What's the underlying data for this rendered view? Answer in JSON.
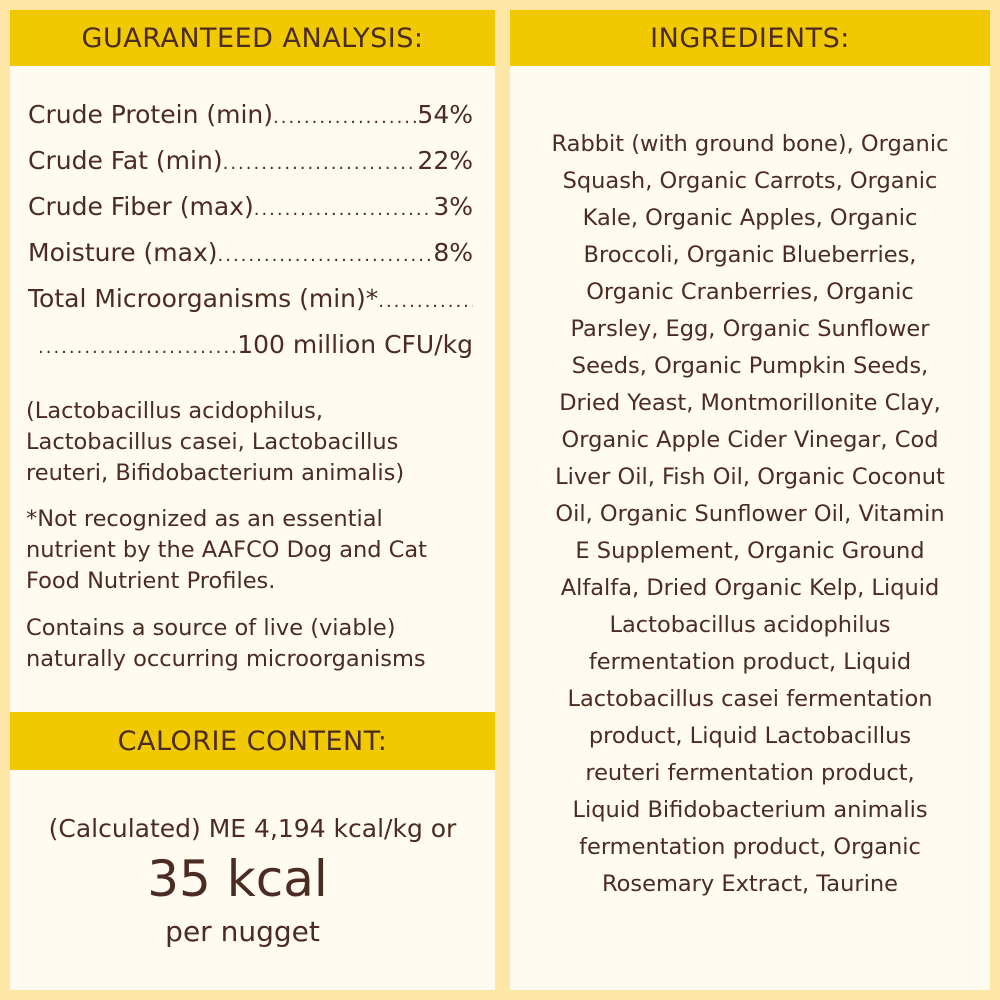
{
  "colors": {
    "background": "#fde7a6",
    "header": "#f0c900",
    "panel": "#fffbf1",
    "text": "#4b2b22"
  },
  "analysis": {
    "title": "GUARANTEED ANALYSIS:",
    "items": [
      {
        "label": "Crude Protein (min)",
        "value": "54%"
      },
      {
        "label": "Crude Fat (min)",
        "value": "22%"
      },
      {
        "label": "Crude Fiber (max)",
        "value": "3%"
      },
      {
        "label": "Moisture (max)",
        "value": "8%"
      },
      {
        "label": "Total Microorganisms (min)*",
        "value": ""
      },
      {
        "label": "",
        "value": "100 million CFU/kg"
      }
    ],
    "strains": [
      "(Lactobacillus acidophilus,",
      "Lactobacillus casei, Lactobacillus",
      "reuteri, Bifidobacterium animalis)"
    ],
    "footnote": [
      "*Not recognized as an essential",
      "nutrient by the AAFCO Dog and Cat",
      "Food Nutrient Profiles."
    ],
    "live": [
      "Contains a source of live (viable)",
      "naturally occurring microorganisms"
    ]
  },
  "calorie": {
    "title": "CALORIE CONTENT:",
    "line1": "(Calculated) ME 4,194 kcal/kg or",
    "big": "35 kcal",
    "line3": "per nugget"
  },
  "ingredients": {
    "title": "INGREDIENTS:",
    "lines": [
      "Rabbit (with ground bone), Organic",
      "Squash, Organic Carrots, Organic",
      "Kale, Organic Apples, Organic",
      "Broccoli, Organic Blueberries,",
      "Organic Cranberries, Organic",
      "Parsley, Egg, Organic Sunflower",
      "Seeds, Organic Pumpkin Seeds,",
      "Dried Yeast, Montmorillonite Clay,",
      "Organic Apple Cider Vinegar, Cod",
      "Liver Oil, Fish Oil, Organic Coconut",
      "Oil, Organic Sunflower Oil, Vitamin",
      "E Supplement, Organic Ground",
      "Alfalfa, Dried Organic Kelp, Liquid",
      "Lactobacillus acidophilus",
      "fermentation product, Liquid",
      "Lactobacillus casei fermentation",
      "product, Liquid Lactobacillus",
      "reuteri fermentation product,",
      "Liquid Bifidobacterium animalis",
      "fermentation product, Organic",
      "Rosemary Extract, Taurine"
    ]
  }
}
